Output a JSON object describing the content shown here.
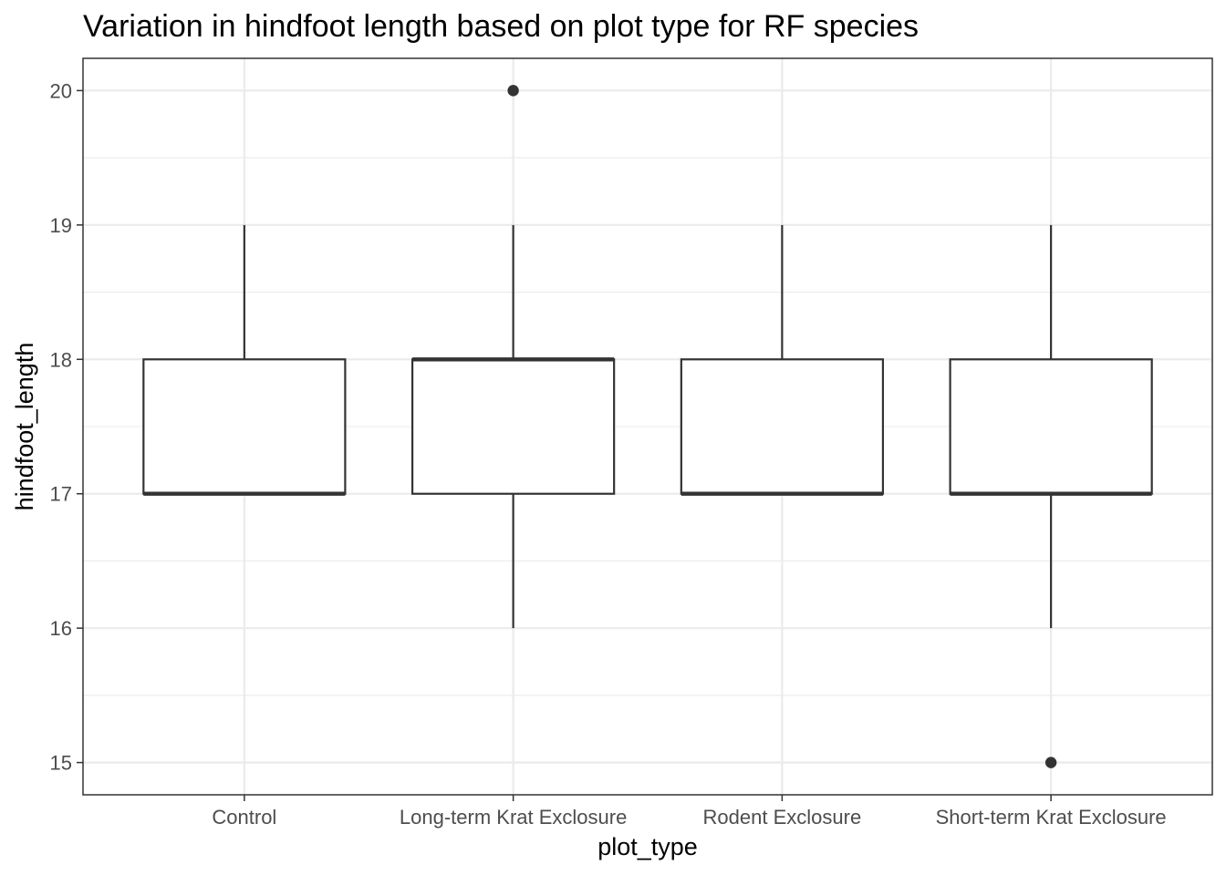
{
  "chart_data": {
    "type": "boxplot",
    "title": "Variation in hindfoot length based on plot type for RF species",
    "xlabel": "plot_type",
    "ylabel": "hindfoot_length",
    "ylim": [
      14.76,
      20.24
    ],
    "y_ticks": [
      15,
      16,
      17,
      18,
      19,
      20
    ],
    "categories": [
      "Control",
      "Long-term Krat Exclosure",
      "Rodent Exclosure",
      "Short-term Krat Exclosure"
    ],
    "boxes": [
      {
        "category": "Control",
        "whisker_low": 17,
        "q1": 17,
        "median": 17,
        "q3": 18,
        "whisker_high": 19,
        "outliers": []
      },
      {
        "category": "Long-term Krat Exclosure",
        "whisker_low": 16,
        "q1": 17,
        "median": 18,
        "q3": 18,
        "whisker_high": 19,
        "outliers": [
          20
        ]
      },
      {
        "category": "Rodent Exclosure",
        "whisker_low": 17,
        "q1": 17,
        "median": 17,
        "q3": 18,
        "whisker_high": 19,
        "outliers": []
      },
      {
        "category": "Short-term Krat Exclosure",
        "whisker_low": 16,
        "q1": 17,
        "median": 17,
        "q3": 18,
        "whisker_high": 19,
        "outliers": [
          15
        ]
      }
    ],
    "grid": true,
    "legend": "none",
    "colors": {
      "box_line": "#333333",
      "box_fill": "#ffffff",
      "grid": "#ebebeb",
      "tick_text": "#4d4d4d"
    }
  }
}
